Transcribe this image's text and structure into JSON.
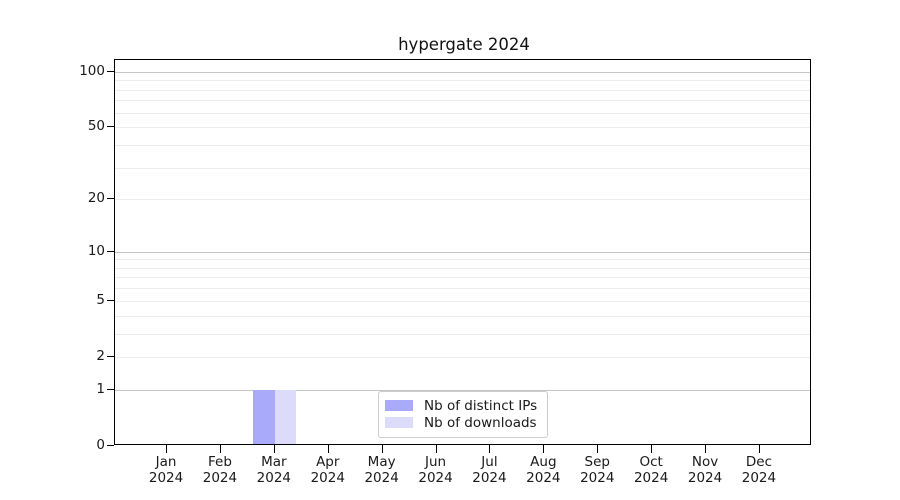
{
  "title": "hypergate 2024",
  "legend": {
    "items": [
      {
        "label": "Nb of distinct IPs",
        "color": "#aaaafa"
      },
      {
        "label": "Nb of downloads",
        "color": "#dcdcfa"
      }
    ]
  },
  "chart_data": {
    "type": "bar",
    "title": "hypergate 2024",
    "categories": [
      {
        "month": "Jan",
        "year": "2024"
      },
      {
        "month": "Feb",
        "year": "2024"
      },
      {
        "month": "Mar",
        "year": "2024"
      },
      {
        "month": "Apr",
        "year": "2024"
      },
      {
        "month": "May",
        "year": "2024"
      },
      {
        "month": "Jun",
        "year": "2024"
      },
      {
        "month": "Jul",
        "year": "2024"
      },
      {
        "month": "Aug",
        "year": "2024"
      },
      {
        "month": "Sep",
        "year": "2024"
      },
      {
        "month": "Oct",
        "year": "2024"
      },
      {
        "month": "Nov",
        "year": "2024"
      },
      {
        "month": "Dec",
        "year": "2024"
      }
    ],
    "series": [
      {
        "name": "Nb of distinct IPs",
        "color": "#aaaafa",
        "values": [
          0,
          0,
          1,
          0,
          0,
          0,
          0,
          0,
          0,
          0,
          0,
          0
        ]
      },
      {
        "name": "Nb of downloads",
        "color": "#dcdcfa",
        "values": [
          0,
          0,
          1,
          0,
          0,
          0,
          0,
          0,
          0,
          0,
          0,
          0
        ]
      }
    ],
    "xlabel": "",
    "ylabel": "",
    "yscale": "log1p",
    "ylim": [
      0,
      116
    ],
    "ytick_labels": [
      0,
      1,
      2,
      5,
      10,
      20,
      50,
      100
    ],
    "major_gridlines": [
      1,
      10,
      100
    ],
    "minor_gridlines": [
      2,
      3,
      4,
      5,
      6,
      7,
      8,
      9,
      20,
      30,
      40,
      50,
      60,
      70,
      80,
      90
    ],
    "grid": "horizontal",
    "legend_position": "lower center"
  }
}
